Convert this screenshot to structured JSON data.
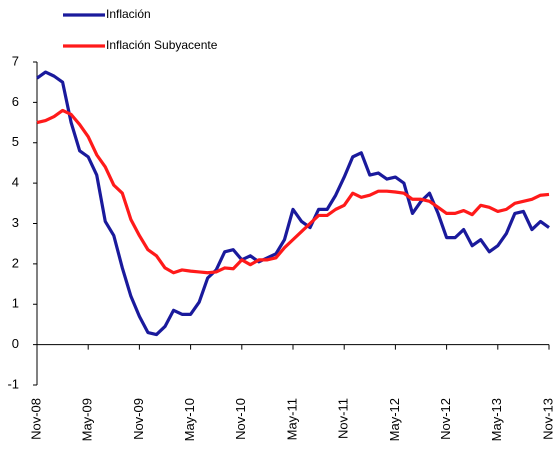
{
  "chart_data": {
    "type": "line",
    "categories": [
      "Nov-08",
      null,
      null,
      null,
      null,
      null,
      "May-09",
      null,
      null,
      null,
      null,
      null,
      "Nov-09",
      null,
      null,
      null,
      null,
      null,
      "May-10",
      null,
      null,
      null,
      null,
      null,
      "Nov-10",
      null,
      null,
      null,
      null,
      null,
      "May-11",
      null,
      null,
      null,
      null,
      null,
      "Nov-11",
      null,
      null,
      null,
      null,
      null,
      "May-12",
      null,
      null,
      null,
      null,
      null,
      "Nov-12",
      null,
      null,
      null,
      null,
      null,
      "May-13",
      null,
      null,
      null,
      null,
      null,
      "Nov-13"
    ],
    "series": [
      {
        "name": "Inflación",
        "color": "#1a1a9c",
        "values": [
          6.6,
          6.75,
          6.65,
          6.5,
          5.5,
          4.8,
          4.65,
          4.2,
          3.05,
          2.7,
          1.9,
          1.2,
          0.7,
          0.3,
          0.25,
          0.45,
          0.85,
          0.75,
          0.75,
          1.05,
          1.65,
          1.85,
          2.3,
          2.35,
          2.1,
          2.2,
          2.05,
          2.15,
          2.25,
          2.6,
          3.35,
          3.05,
          2.9,
          3.35,
          3.35,
          3.7,
          4.15,
          4.65,
          4.75,
          4.2,
          4.25,
          4.1,
          4.15,
          4.0,
          3.25,
          3.55,
          3.75,
          3.25,
          2.65,
          2.65,
          2.85,
          2.45,
          2.6,
          2.3,
          2.45,
          2.75,
          3.25,
          3.3,
          2.85,
          3.05,
          2.9
        ]
      },
      {
        "name": "Inflación Subyacente",
        "color": "#ff1a1a",
        "values": [
          5.5,
          5.55,
          5.65,
          5.8,
          5.7,
          5.45,
          5.15,
          4.7,
          4.4,
          3.95,
          3.75,
          3.1,
          2.7,
          2.35,
          2.2,
          1.9,
          1.78,
          1.85,
          1.82,
          1.8,
          1.78,
          1.8,
          1.9,
          1.88,
          2.1,
          1.98,
          2.1,
          2.1,
          2.15,
          2.4,
          2.6,
          2.8,
          3.0,
          3.2,
          3.2,
          3.35,
          3.45,
          3.75,
          3.65,
          3.7,
          3.8,
          3.8,
          3.78,
          3.75,
          3.6,
          3.6,
          3.55,
          3.4,
          3.25,
          3.25,
          3.32,
          3.22,
          3.45,
          3.4,
          3.3,
          3.35,
          3.5,
          3.55,
          3.6,
          3.7,
          3.72
        ]
      }
    ],
    "ylim": [
      -1,
      7
    ],
    "yticks": [
      -1,
      0,
      1,
      2,
      3,
      4,
      5,
      6,
      7
    ]
  }
}
